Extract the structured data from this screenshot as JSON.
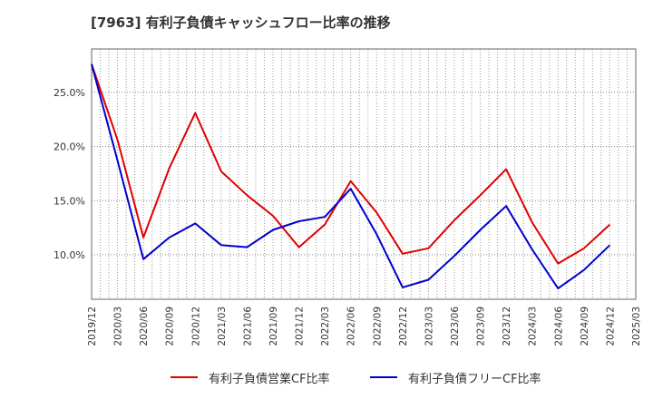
{
  "chart_data": {
    "type": "line",
    "title": "[7963]  有利子負債キャッシュフロー比率の推移",
    "x": [
      "2019/12",
      "2020/03",
      "2020/06",
      "2020/09",
      "2020/12",
      "2021/03",
      "2021/06",
      "2021/09",
      "2021/12",
      "2022/03",
      "2022/06",
      "2022/09",
      "2022/12",
      "2023/03",
      "2023/06",
      "2023/09",
      "2023/12",
      "2024/03",
      "2024/06",
      "2024/09",
      "2024/12",
      "2025/03"
    ],
    "ytick_labels": [
      "10.0%",
      "15.0%",
      "20.0%",
      "25.0%"
    ],
    "ylim": [
      5.9,
      29.0
    ],
    "y_unit": "%",
    "grid": true,
    "legend_position": "bottom",
    "series": [
      {
        "name": "有利子負債営業CF比率",
        "color": "#e00000",
        "values": [
          27.6,
          20.6,
          11.6,
          18.0,
          23.1,
          17.7,
          15.5,
          13.6,
          10.7,
          12.8,
          16.8,
          13.9,
          10.1,
          10.6,
          13.2,
          15.5,
          17.9,
          13.0,
          9.2,
          10.6,
          12.8,
          null
        ]
      },
      {
        "name": "有利子負債フリーCF比率",
        "color": "#0000cc",
        "values": [
          27.6,
          18.7,
          9.6,
          11.6,
          12.9,
          10.9,
          10.7,
          12.3,
          13.1,
          13.5,
          16.1,
          11.9,
          7.0,
          7.7,
          9.9,
          12.3,
          14.5,
          10.5,
          6.9,
          8.6,
          10.9,
          null
        ]
      }
    ]
  }
}
